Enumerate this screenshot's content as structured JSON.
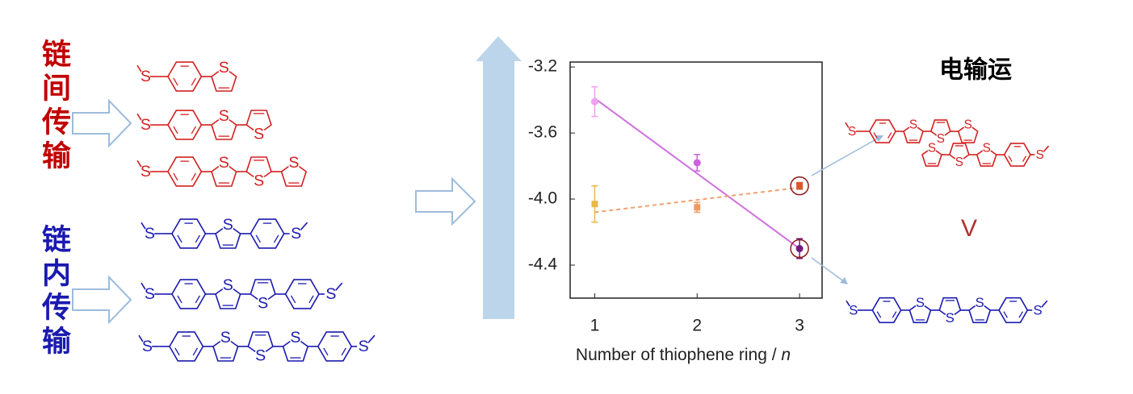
{
  "labels": {
    "inter_chain": "链间传输",
    "intra_chain": "链内传输",
    "transport": "电输运",
    "comparison": "V",
    "sulfur": "S"
  },
  "chart_data": {
    "type": "scatter",
    "xlabel": "Number of thiophene ring /",
    "xlabel_italic": "n",
    "x": [
      1,
      2,
      3
    ],
    "xlim": [
      0.76,
      3.22
    ],
    "xticks": [
      1,
      2,
      3
    ],
    "ylim": [
      -4.6,
      -3.17
    ],
    "yticks": [
      -3.2,
      -3.6,
      {
        "value": -4,
        "label": "-4.0"
      },
      -4.4
    ],
    "series": [
      {
        "marker": "circle",
        "point_colors": [
          "#f0a0f0",
          "#d060e0",
          "#701a80"
        ],
        "values": [
          -3.41,
          -3.78,
          -4.3
        ],
        "errors": [
          0.09,
          0.05,
          0.06
        ],
        "fit_x": [
          1,
          3
        ],
        "fit": [
          -3.39,
          -4.3
        ],
        "fit_color": "#d070e0",
        "fit_style": "solid"
      },
      {
        "marker": "square",
        "point_colors": [
          "#e8b84a",
          "#f09a60",
          "#e0552a"
        ],
        "values": [
          -4.03,
          -4.05,
          -3.92
        ],
        "errors": [
          0.11,
          0.03,
          0.02
        ],
        "fit_x": [
          1,
          3
        ],
        "fit": [
          -4.08,
          -3.93
        ],
        "fit_color": "#f0a070",
        "fit_style": "dashed"
      }
    ]
  }
}
